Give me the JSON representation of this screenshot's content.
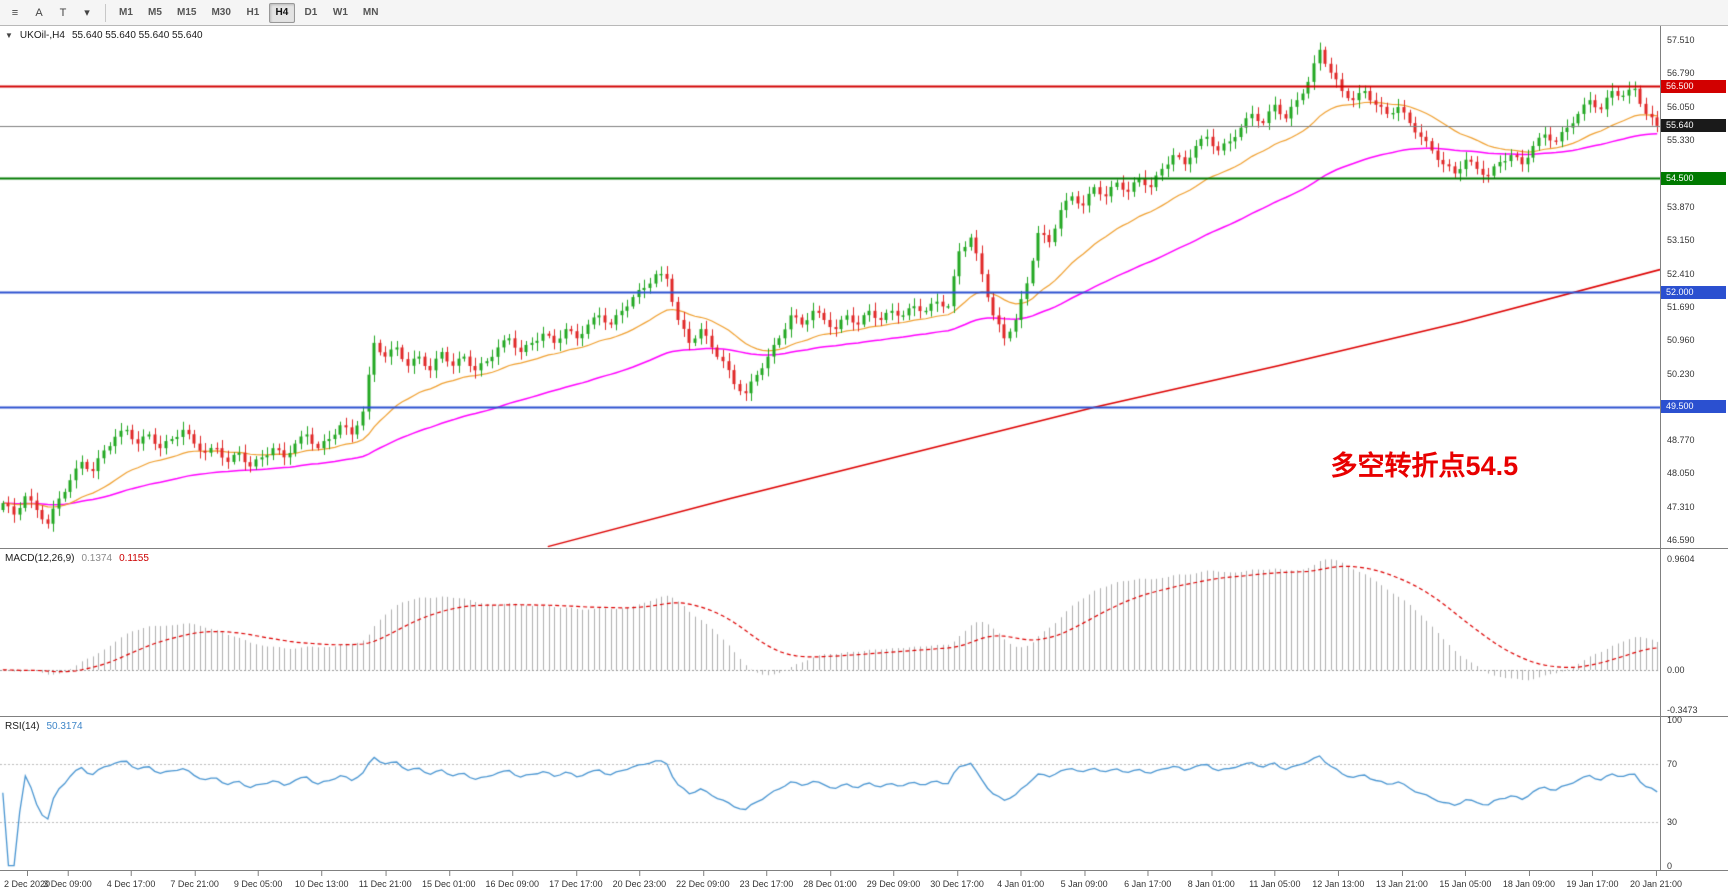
{
  "toolbar": {
    "tools": [
      {
        "name": "chart-list-icon",
        "glyph": "≡"
      },
      {
        "name": "cursor-tool-icon",
        "glyph": "A"
      },
      {
        "name": "text-tool-icon",
        "glyph": "T"
      },
      {
        "name": "indicators-dropdown-icon",
        "glyph": "▾"
      }
    ],
    "timeframes": [
      "M1",
      "M5",
      "M15",
      "M30",
      "H1",
      "H4",
      "D1",
      "W1",
      "MN"
    ],
    "active_timeframe": "H4"
  },
  "main_chart": {
    "collapse_icon": "▼",
    "title": "UKOil-,H4",
    "ohlc": "55.640 55.640 55.640 55.640",
    "up_color": "#22a822",
    "down_color": "#e02828",
    "current_price": "55.640",
    "current_price_line_color": "#808080",
    "annotation": {
      "text": "多空转折点54.5",
      "color": "#e80000"
    },
    "axis_labels": [
      "57.510",
      "56.790",
      "56.050",
      "55.330",
      "53.870",
      "53.150",
      "52.410",
      "51.690",
      "50.960",
      "50.230",
      "48.770",
      "48.050",
      "47.310",
      "46.590"
    ],
    "badges": [
      {
        "text": "56.500",
        "color": "#d20000"
      },
      {
        "text": "55.640",
        "color": "#1a1a1a"
      },
      {
        "text": "54.500",
        "color": "#007a00"
      },
      {
        "text": "52.000",
        "color": "#2b50d0"
      },
      {
        "text": "49.500",
        "color": "#2b50d0"
      }
    ],
    "hlines": [
      {
        "price": 56.5,
        "color": "#d20000",
        "width": 2
      },
      {
        "price": 54.5,
        "color": "#007a00",
        "width": 2
      },
      {
        "price": 52.0,
        "color": "#2b50d0",
        "width": 2
      },
      {
        "price": 49.5,
        "color": "#2b50d0",
        "width": 2
      }
    ]
  },
  "chart_data": {
    "type": "candlestick",
    "symbol": "UKOil-",
    "timeframe": "H4",
    "price_range": [
      46.42,
      57.82
    ],
    "closes": [
      47.4,
      47.15,
      47.55,
      47.25,
      46.95,
      47.5,
      47.9,
      48.3,
      48.1,
      48.55,
      48.85,
      49.0,
      48.7,
      48.9,
      48.6,
      48.8,
      49.0,
      48.7,
      48.5,
      48.6,
      48.3,
      48.5,
      48.2,
      48.4,
      48.6,
      48.4,
      48.7,
      48.9,
      48.6,
      48.8,
      49.1,
      48.9,
      49.4,
      50.9,
      50.6,
      50.8,
      50.4,
      50.6,
      50.3,
      50.7,
      50.4,
      50.6,
      50.3,
      50.5,
      50.8,
      51.0,
      50.7,
      50.9,
      51.1,
      50.9,
      51.2,
      51.0,
      51.3,
      51.5,
      51.3,
      51.6,
      51.9,
      52.1,
      52.4,
      52.3,
      51.4,
      50.9,
      51.2,
      50.8,
      50.5,
      50.0,
      49.8,
      50.2,
      50.6,
      51.0,
      51.5,
      51.3,
      51.6,
      51.4,
      51.2,
      51.5,
      51.3,
      51.6,
      51.4,
      51.6,
      51.5,
      51.7,
      51.6,
      51.8,
      51.7,
      52.9,
      53.2,
      52.4,
      51.5,
      51.0,
      51.4,
      52.2,
      53.3,
      53.1,
      53.8,
      54.1,
      53.9,
      54.3,
      54.1,
      54.4,
      54.2,
      54.5,
      54.3,
      54.7,
      55.0,
      54.8,
      55.2,
      55.4,
      55.1,
      55.3,
      55.6,
      55.9,
      55.7,
      56.1,
      55.8,
      56.2,
      56.6,
      57.3,
      56.8,
      56.4,
      56.2,
      56.4,
      56.1,
      55.9,
      56.05,
      55.7,
      55.4,
      55.1,
      54.8,
      54.6,
      54.9,
      54.7,
      54.55,
      54.85,
      55.0,
      54.8,
      55.2,
      55.45,
      55.3,
      55.6,
      55.9,
      56.2,
      56.0,
      56.4,
      56.3,
      56.45,
      55.9,
      55.64
    ],
    "time_labels": [
      "2 Dec 2020",
      "3 Dec 09:00",
      "4 Dec 17:00",
      "7 Dec 21:00",
      "9 Dec 05:00",
      "10 Dec 13:00",
      "11 Dec 21:00",
      "15 Dec 01:00",
      "16 Dec 09:00",
      "17 Dec 17:00",
      "20 Dec 23:00",
      "22 Dec 09:00",
      "23 Dec 17:00",
      "28 Dec 01:00",
      "29 Dec 09:00",
      "30 Dec 17:00",
      "4 Jan 01:00",
      "5 Jan 09:00",
      "6 Jan 17:00",
      "8 Jan 01:00",
      "11 Jan 05:00",
      "12 Jan 13:00",
      "13 Jan 21:00",
      "15 Jan 05:00",
      "18 Jan 09:00",
      "19 Jan 17:00",
      "20 Jan 21:00"
    ],
    "moving_averages": [
      {
        "name": "ma-fast",
        "color": "#f0a030",
        "period": 24
      },
      {
        "name": "ma-mid",
        "color": "#ff00ff",
        "period": 68
      },
      {
        "name": "ma-slow",
        "color": "#dd0000",
        "points": [
          [
            0.33,
            46.45
          ],
          [
            0.44,
            47.5
          ],
          [
            0.55,
            48.5
          ],
          [
            0.66,
            49.5
          ],
          [
            0.77,
            50.4
          ],
          [
            0.88,
            51.35
          ],
          [
            1.0,
            52.5
          ]
        ]
      }
    ],
    "macd": {
      "label": "MACD(12,26,9)",
      "value_main": "0.1374",
      "value_signal": "0.1155",
      "fast": 12,
      "slow": 26,
      "signal": 9,
      "axis_labels": [
        "0.9604",
        "0.00",
        "-0.3473"
      ],
      "range": [
        1.05,
        -0.4
      ],
      "histogram_color": "#b0b0b0",
      "signal_color": "#dd0000"
    },
    "rsi": {
      "label": "RSI(14)",
      "value": "50.3174",
      "period": 14,
      "levels": [
        70,
        30
      ],
      "axis_labels": [
        "100",
        "70",
        "30",
        "0"
      ],
      "range": [
        102,
        -3
      ],
      "line_color": "#4a96d2"
    }
  }
}
